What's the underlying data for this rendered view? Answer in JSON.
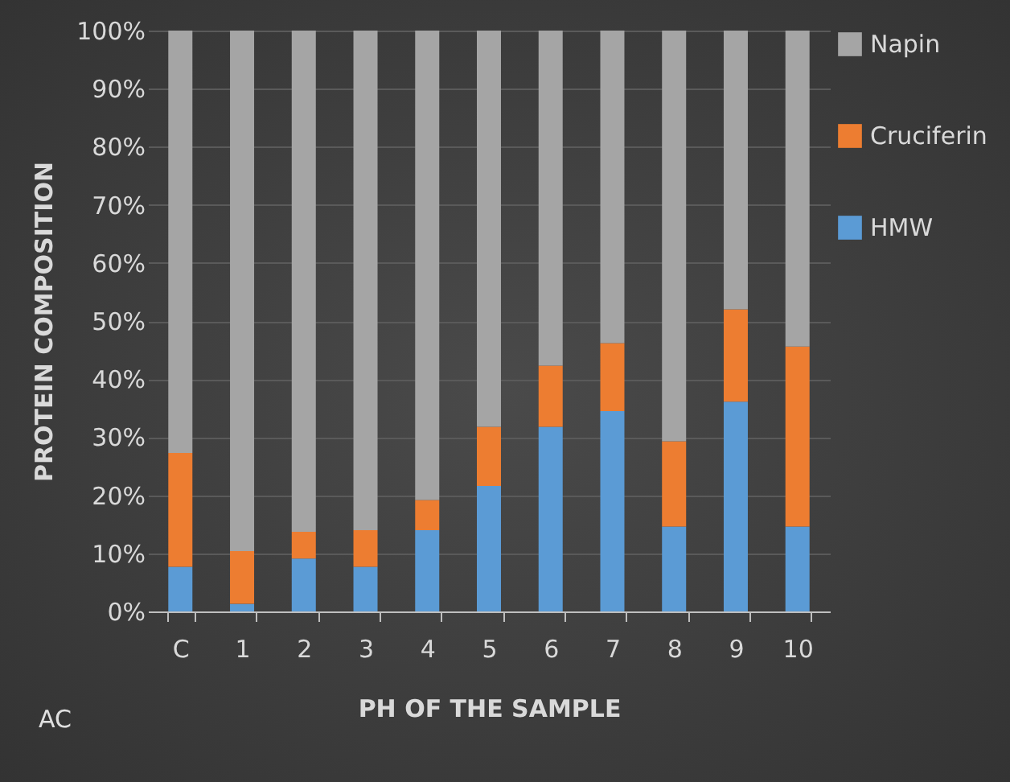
{
  "chart_data": {
    "type": "bar",
    "stacked": true,
    "xlabel": "PH OF THE SAMPLE",
    "ylabel": "PROTEIN COMPOSITION",
    "categories": [
      "C",
      "1",
      "2",
      "3",
      "4",
      "5",
      "6",
      "7",
      "8",
      "9",
      "10"
    ],
    "series": [
      {
        "name": "HMW",
        "color": "#5b9bd5",
        "values": [
          7.7,
          1.3,
          9.1,
          7.7,
          14,
          21.6,
          31.8,
          34.5,
          14.6,
          36.1,
          14.6
        ]
      },
      {
        "name": "Cruciferin",
        "color": "#ed7d31",
        "values": [
          19.6,
          9.1,
          4.6,
          6.3,
          5.2,
          10.2,
          10.5,
          11.7,
          14.7,
          15.9,
          31
        ]
      },
      {
        "name": "Napin",
        "color": "#a5a5a5",
        "values": [
          72.7,
          89.6,
          86.3,
          86,
          80.8,
          68.2,
          57.7,
          53.8,
          70.7,
          48,
          54.4
        ]
      }
    ],
    "ylim": [
      0,
      100
    ],
    "yticks": [
      {
        "value": 0,
        "label": "0%"
      },
      {
        "value": 10,
        "label": "10%"
      },
      {
        "value": 20,
        "label": "20%"
      },
      {
        "value": 30,
        "label": "30%"
      },
      {
        "value": 40,
        "label": "40%"
      },
      {
        "value": 50,
        "label": "50%"
      },
      {
        "value": 60,
        "label": "60%"
      },
      {
        "value": 70,
        "label": "70%"
      },
      {
        "value": 80,
        "label": "80%"
      },
      {
        "value": 90,
        "label": "90%"
      },
      {
        "value": 100,
        "label": "100%"
      }
    ],
    "grid": "y",
    "legend": "right",
    "annotations": [
      "AC"
    ]
  }
}
